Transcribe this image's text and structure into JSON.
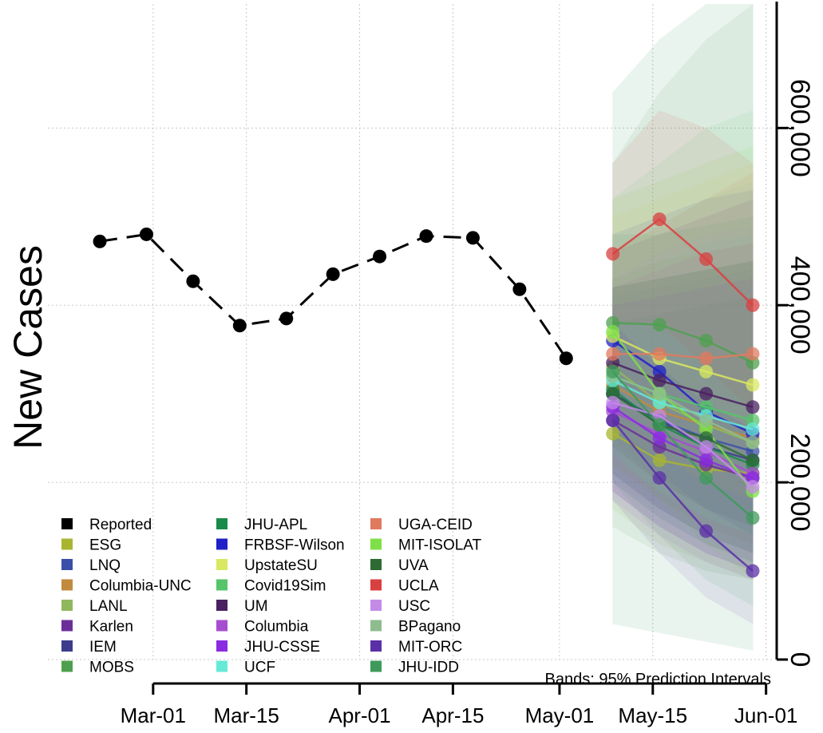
{
  "chart_data": {
    "type": "line",
    "ylabel": "New Cases",
    "note": "Bands: 95% Prediction Intervals",
    "x_ticks": [
      "Mar-01",
      "Mar-15",
      "Apr-01",
      "Apr-15",
      "May-01",
      "May-15",
      "Jun-01"
    ],
    "y_ticks": [
      "0",
      "200,000",
      "400,000",
      "600,000"
    ],
    "xlim": [
      "2020-02-19",
      "2020-06-02"
    ],
    "ylim": [
      0,
      740000
    ],
    "grid": true,
    "legend_position": "bottom-left",
    "reported": {
      "name": "Reported",
      "x": [
        "2020-02-22",
        "2020-02-29",
        "2020-03-07",
        "2020-03-14",
        "2020-03-21",
        "2020-03-28",
        "2020-04-04",
        "2020-04-11",
        "2020-04-18",
        "2020-04-25",
        "2020-05-02"
      ],
      "values": [
        472000,
        480000,
        427000,
        377000,
        385000,
        435000,
        455000,
        478000,
        476000,
        418000,
        340000
      ]
    },
    "forecast_x": [
      "2020-05-09",
      "2020-05-16",
      "2020-05-23",
      "2020-05-30"
    ],
    "series": [
      {
        "name": "ESG",
        "color": "#a8b530",
        "values": [
          255000,
          225000,
          215000,
          210000
        ],
        "band": [
          [
            170000,
            330000
          ],
          [
            130000,
            330000
          ],
          [
            110000,
            340000
          ],
          [
            90000,
            350000
          ]
        ]
      },
      {
        "name": "LNQ",
        "color": "#3a4fa8",
        "values": [
          300000,
          270000,
          250000,
          235000
        ],
        "band": [
          [
            200000,
            410000
          ],
          [
            160000,
            420000
          ],
          [
            130000,
            430000
          ],
          [
            110000,
            440000
          ]
        ]
      },
      {
        "name": "Columbia-UNC",
        "color": "#c28a3c",
        "values": [
          310000,
          280000,
          265000,
          250000
        ],
        "band": [
          [
            220000,
            430000
          ],
          [
            180000,
            450000
          ],
          [
            150000,
            460000
          ],
          [
            130000,
            470000
          ]
        ]
      },
      {
        "name": "LANL",
        "color": "#8fb85c",
        "values": [
          330000,
          290000,
          265000,
          245000
        ],
        "band": [
          [
            250000,
            420000
          ],
          [
            200000,
            430000
          ],
          [
            170000,
            440000
          ],
          [
            150000,
            450000
          ]
        ]
      },
      {
        "name": "Karlen",
        "color": "#6b2f9a",
        "values": [
          270000,
          240000,
          220000,
          205000
        ],
        "band": [
          [
            190000,
            380000
          ],
          [
            150000,
            390000
          ],
          [
            120000,
            400000
          ],
          [
            100000,
            410000
          ]
        ]
      },
      {
        "name": "IEM",
        "color": "#3c3c8c",
        "values": [
          300000,
          270000,
          240000,
          225000
        ],
        "band": [
          [
            210000,
            420000
          ],
          [
            170000,
            430000
          ],
          [
            140000,
            440000
          ],
          [
            120000,
            450000
          ]
        ]
      },
      {
        "name": "MOBS",
        "color": "#4ea04e",
        "values": [
          380000,
          378000,
          360000,
          335000
        ],
        "band": [
          [
            150000,
            560000
          ],
          [
            120000,
            640000
          ],
          [
            100000,
            700000
          ],
          [
            90000,
            740000
          ]
        ]
      },
      {
        "name": "JHU-APL",
        "color": "#1a8a4a",
        "values": [
          305000,
          265000,
          240000,
          220000
        ],
        "band": [
          [
            40000,
            640000
          ],
          [
            30000,
            700000
          ],
          [
            20000,
            740000
          ],
          [
            10000,
            740000
          ]
        ]
      },
      {
        "name": "FRBSF-Wilson",
        "color": "#2020c8",
        "values": [
          360000,
          325000,
          280000,
          255000
        ],
        "band": [
          [
            260000,
            480000
          ],
          [
            210000,
            500000
          ],
          [
            170000,
            520000
          ],
          [
            140000,
            530000
          ]
        ]
      },
      {
        "name": "UpstateSU",
        "color": "#d8e860",
        "values": [
          365000,
          340000,
          325000,
          310000
        ],
        "band": [
          [
            260000,
            500000
          ],
          [
            230000,
            520000
          ],
          [
            200000,
            540000
          ],
          [
            180000,
            560000
          ]
        ]
      },
      {
        "name": "Covid19Sim",
        "color": "#56c46a",
        "values": [
          320000,
          300000,
          285000,
          270000
        ],
        "band": [
          [
            200000,
            520000
          ],
          [
            160000,
            560000
          ],
          [
            130000,
            600000
          ],
          [
            110000,
            620000
          ]
        ]
      },
      {
        "name": "UM",
        "color": "#4a2060",
        "values": [
          335000,
          315000,
          300000,
          285000
        ],
        "band": [
          [
            240000,
            460000
          ],
          [
            200000,
            480000
          ],
          [
            170000,
            500000
          ],
          [
            150000,
            520000
          ]
        ]
      },
      {
        "name": "Columbia",
        "color": "#a64ed0",
        "values": [
          280000,
          255000,
          235000,
          210000
        ],
        "band": [
          [
            180000,
            420000
          ],
          [
            140000,
            440000
          ],
          [
            110000,
            460000
          ],
          [
            90000,
            470000
          ]
        ]
      },
      {
        "name": "JHU-CSSE",
        "color": "#8a2be2",
        "values": [
          285000,
          250000,
          225000,
          205000
        ],
        "band": [
          [
            190000,
            400000
          ],
          [
            150000,
            410000
          ],
          [
            120000,
            420000
          ],
          [
            100000,
            430000
          ]
        ]
      },
      {
        "name": "UCF",
        "color": "#66ead6",
        "values": [
          315000,
          290000,
          275000,
          260000
        ],
        "band": [
          [
            230000,
            430000
          ],
          [
            190000,
            450000
          ],
          [
            160000,
            470000
          ],
          [
            140000,
            480000
          ]
        ]
      },
      {
        "name": "UGA-CEID",
        "color": "#e07a5f",
        "values": [
          345000,
          345000,
          340000,
          345000
        ],
        "band": [
          [
            260000,
            460000
          ],
          [
            230000,
            490000
          ],
          [
            200000,
            520000
          ],
          [
            180000,
            550000
          ]
        ]
      },
      {
        "name": "MIT-ISOLAT",
        "color": "#7ee048",
        "values": [
          370000,
          300000,
          260000,
          190000
        ],
        "band": [
          [
            240000,
            520000
          ],
          [
            180000,
            540000
          ],
          [
            130000,
            560000
          ],
          [
            90000,
            580000
          ]
        ]
      },
      {
        "name": "UVA",
        "color": "#2e6b34",
        "values": [
          300000,
          265000,
          250000,
          225000
        ],
        "band": [
          [
            210000,
            420000
          ],
          [
            170000,
            430000
          ],
          [
            140000,
            440000
          ],
          [
            120000,
            450000
          ]
        ]
      },
      {
        "name": "UCLA",
        "color": "#d94040",
        "values": [
          458000,
          497000,
          452000,
          400000
        ],
        "band": [
          [
            380000,
            560000
          ],
          [
            380000,
            620000
          ],
          [
            330000,
            600000
          ],
          [
            280000,
            560000
          ]
        ]
      },
      {
        "name": "USC",
        "color": "#c48ae8",
        "values": [
          290000,
          275000,
          240000,
          195000
        ],
        "band": [
          [
            200000,
            430000
          ],
          [
            170000,
            460000
          ],
          [
            140000,
            480000
          ],
          [
            110000,
            490000
          ]
        ]
      },
      {
        "name": "BPagano",
        "color": "#8fbc8f",
        "values": [
          320000,
          300000,
          270000,
          245000
        ],
        "band": [
          [
            220000,
            460000
          ],
          [
            190000,
            490000
          ],
          [
            160000,
            520000
          ],
          [
            140000,
            540000
          ]
        ]
      },
      {
        "name": "MIT-ORC",
        "color": "#5b2fa8",
        "values": [
          270000,
          205000,
          145000,
          100000
        ],
        "band": [
          [
            180000,
            380000
          ],
          [
            120000,
            330000
          ],
          [
            70000,
            290000
          ],
          [
            40000,
            260000
          ]
        ]
      },
      {
        "name": "JHU-IDD",
        "color": "#3e9a5a",
        "values": [
          325000,
          265000,
          205000,
          160000
        ],
        "band": [
          [
            200000,
            480000
          ],
          [
            140000,
            480000
          ],
          [
            90000,
            490000
          ],
          [
            60000,
            500000
          ]
        ]
      }
    ]
  }
}
